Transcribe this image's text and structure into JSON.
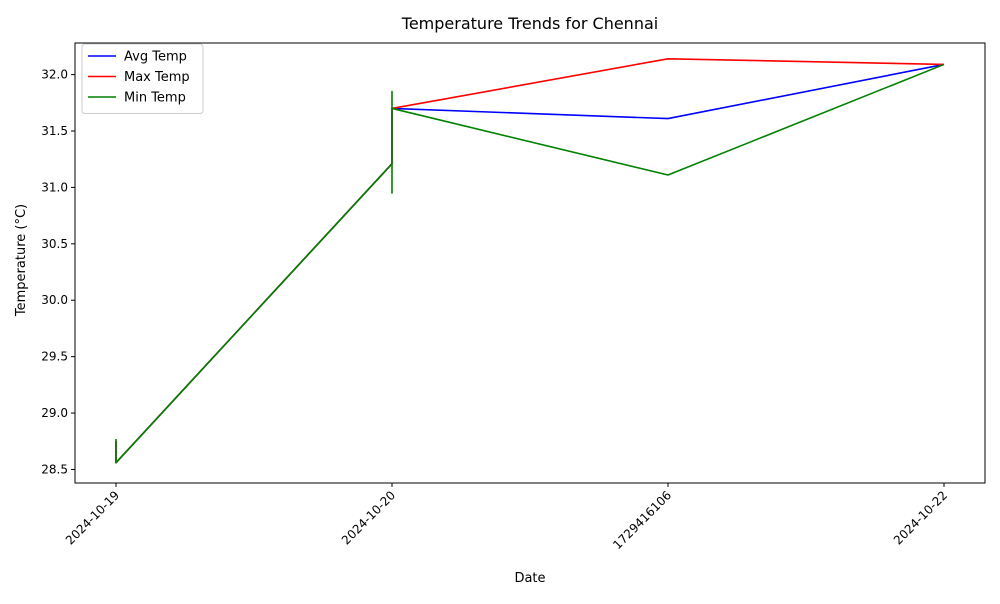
{
  "chart_data": {
    "type": "line",
    "title": "Temperature Trends for Chennai",
    "xlabel": "Date",
    "ylabel": "Temperature (°C)",
    "categories": [
      "2024-10-19",
      "2024-10-20",
      "1729416106",
      "2024-10-22"
    ],
    "ylim": [
      28.38,
      32.28
    ],
    "yticks": [
      "28.5",
      "29.0",
      "29.5",
      "30.0",
      "30.5",
      "31.0",
      "31.5",
      "32.0"
    ],
    "grid": false,
    "legend_position": "upper-left",
    "series": [
      {
        "name": "Avg Temp",
        "color": "#0000ff",
        "points": [
          {
            "x": "2024-10-19",
            "y": 28.75
          },
          {
            "x": "2024-10-19",
            "y": 28.56
          },
          {
            "x": "2024-10-20",
            "y": 31.21
          },
          {
            "x": "2024-10-20",
            "y": 31.7
          },
          {
            "x": "1729416106",
            "y": 31.61
          },
          {
            "x": "2024-10-22",
            "y": 32.09
          }
        ]
      },
      {
        "name": "Max Temp",
        "color": "#ff0000",
        "points": [
          {
            "x": "2024-10-19",
            "y": 28.75
          },
          {
            "x": "2024-10-19",
            "y": 28.56
          },
          {
            "x": "2024-10-20",
            "y": 31.21
          },
          {
            "x": "2024-10-20",
            "y": 31.7
          },
          {
            "x": "1729416106",
            "y": 32.14
          },
          {
            "x": "2024-10-22",
            "y": 32.09
          }
        ]
      },
      {
        "name": "Min Temp",
        "color": "#008000",
        "points": [
          {
            "x": "2024-10-19",
            "y": 28.77
          },
          {
            "x": "2024-10-19",
            "y": 28.56
          },
          {
            "x": "2024-10-20",
            "y": 31.21
          },
          {
            "x": "2024-10-20",
            "y": 30.95
          },
          {
            "x": "2024-10-20",
            "y": 31.85
          },
          {
            "x": "2024-10-20",
            "y": 31.7
          },
          {
            "x": "1729416106",
            "y": 31.11
          },
          {
            "x": "2024-10-22",
            "y": 32.09
          }
        ]
      }
    ]
  }
}
